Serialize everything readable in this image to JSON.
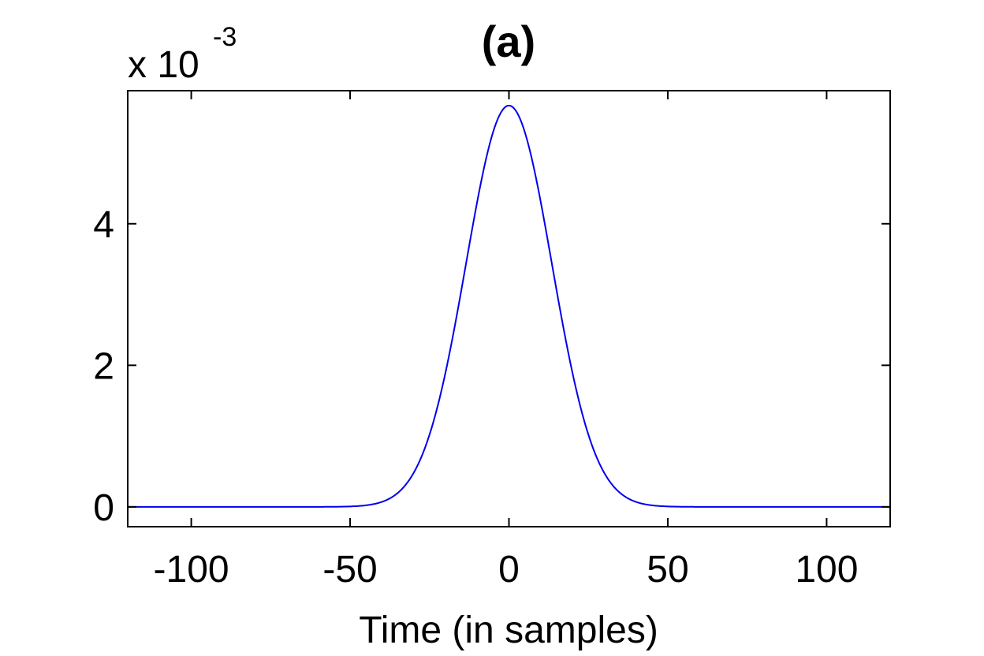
{
  "chart_data": {
    "type": "line",
    "title": "(a)",
    "xlabel": "Time (in samples)",
    "ylabel": "",
    "y_multiplier": {
      "base": "x 10",
      "exponent": "-3"
    },
    "xlim": [
      -120,
      120
    ],
    "ylim": [
      -0.00028,
      0.00588
    ],
    "xticks": [
      -100,
      -50,
      0,
      50,
      100
    ],
    "xtick_labels": [
      "-100",
      "-50",
      "0",
      "50",
      "100"
    ],
    "yticks": [
      0,
      0.002,
      0.004
    ],
    "ytick_labels": [
      "0",
      "2",
      "4"
    ],
    "grid": false,
    "legend": "none",
    "series": [
      {
        "color": "#0000ee",
        "x": [
          -120,
          -100,
          -80,
          -60,
          -40,
          -32,
          -28,
          -24,
          -20,
          -16,
          -12,
          -8,
          -4,
          0,
          4,
          8,
          12,
          16,
          20,
          24,
          28,
          32,
          40,
          60,
          80,
          100,
          120
        ],
        "y": [
          0,
          0,
          0,
          0,
          3e-06,
          3e-05,
          9e-05,
          0.00025,
          0.00064,
          0.00137,
          0.00248,
          0.00378,
          0.00502,
          0.00567,
          0.00502,
          0.00378,
          0.00248,
          0.00137,
          0.00064,
          0.00025,
          9e-05,
          3e-05,
          3e-06,
          0,
          0,
          0,
          0
        ]
      }
    ]
  }
}
